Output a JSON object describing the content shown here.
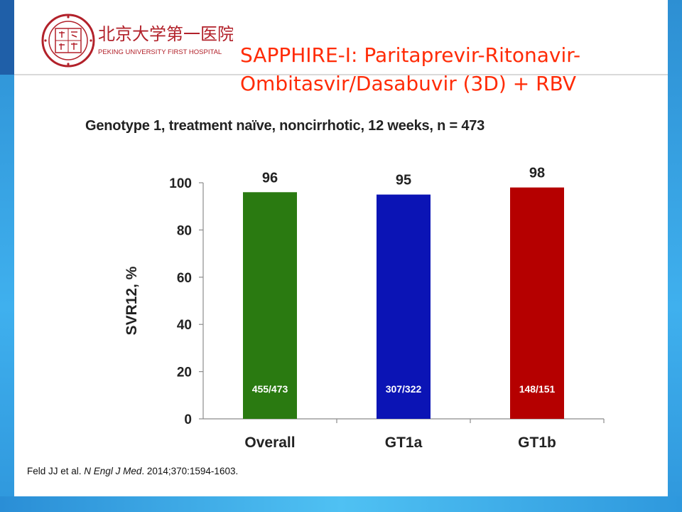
{
  "logo": {
    "chinese_name": "北京大学第一医院",
    "english_name": "PEKING UNIVERSITY FIRST HOSPITAL",
    "seal_text": "尚 厚 道 德"
  },
  "slide": {
    "title_line1": "SAPPHIRE-I: Paritaprevir-Ritonavir-",
    "title_line2": "Ombitasvir/Dasabuvir (3D) + RBV",
    "subtitle": "Genotype 1, treatment naïve, noncirrhotic, 12 weeks, n = 473"
  },
  "citation": {
    "authors": "Feld JJ et al. ",
    "journal": "N Engl J Med",
    "details": ". 2014;370:1594-1603."
  },
  "colors": {
    "title": "#ff2b06",
    "overall": "#2a7a11",
    "gt1a": "#0b14b5",
    "gt1b": "#b50000"
  },
  "chart_data": {
    "type": "bar",
    "categories": [
      "Overall",
      "GT1a",
      "GT1b"
    ],
    "values": [
      96,
      95,
      98
    ],
    "value_labels": [
      "96",
      "95",
      "98"
    ],
    "fractions": [
      "455/473",
      "307/322",
      "148/151"
    ],
    "bar_colors": [
      "#2a7a11",
      "#0b14b5",
      "#b50000"
    ],
    "ylabel": "SVR12, %",
    "xlabel": "",
    "ylim": [
      0,
      100
    ],
    "yticks": [
      0,
      20,
      40,
      60,
      80,
      100
    ],
    "grid": false
  }
}
